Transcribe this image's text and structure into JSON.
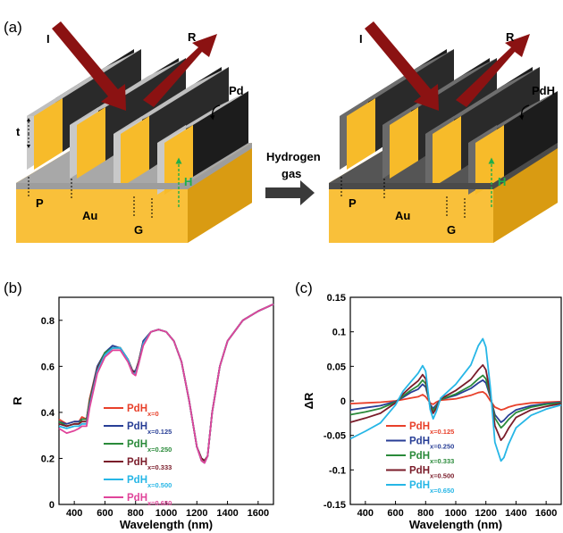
{
  "panel_a": {
    "label": "(a)",
    "left": {
      "incident": "I",
      "reflected": "R",
      "material": "Pd",
      "thickness": "t",
      "height": "H",
      "period": "P",
      "gold": "Au",
      "gap": "G"
    },
    "arrow_text_line1": "Hydrogen",
    "arrow_text_line2": "gas",
    "right": {
      "incident": "I",
      "reflected": "R",
      "material": "PdH",
      "height": "H",
      "period": "P",
      "gold": "Au",
      "gap": "G"
    },
    "colors": {
      "gold": "#f7bb2a",
      "pd": "#b3b3b3",
      "pdh": "#5c5c5c",
      "fin": "#1c1c1c",
      "arrow": "#8b1212",
      "height_line": "#1fae4a"
    }
  },
  "chart_data": [
    {
      "panel": "(b)",
      "type": "line",
      "xlabel": "Wavelength (nm)",
      "ylabel": "R",
      "xlim": [
        300,
        1700
      ],
      "ylim": [
        0,
        0.9
      ],
      "xticks": [
        400,
        600,
        800,
        1000,
        1200,
        1400,
        1600
      ],
      "yticks": [
        0,
        0.2,
        0.4,
        0.6,
        0.8
      ],
      "x": [
        300,
        350,
        400,
        430,
        450,
        480,
        500,
        550,
        600,
        650,
        700,
        750,
        780,
        800,
        820,
        850,
        900,
        950,
        1000,
        1050,
        1100,
        1150,
        1200,
        1230,
        1250,
        1270,
        1300,
        1350,
        1400,
        1500,
        1600,
        1700
      ],
      "series": [
        {
          "name": "PdH",
          "sub": "x=0",
          "color": "#e8402a",
          "values": [
            0.37,
            0.35,
            0.36,
            0.36,
            0.38,
            0.37,
            0.46,
            0.6,
            0.66,
            0.68,
            0.68,
            0.63,
            0.58,
            0.58,
            0.62,
            0.71,
            0.75,
            0.76,
            0.75,
            0.71,
            0.62,
            0.45,
            0.25,
            0.2,
            0.19,
            0.21,
            0.4,
            0.6,
            0.71,
            0.8,
            0.84,
            0.87
          ]
        },
        {
          "name": "PdH",
          "sub": "x=0.125",
          "color": "#283e96",
          "values": [
            0.36,
            0.35,
            0.36,
            0.36,
            0.37,
            0.37,
            0.45,
            0.6,
            0.66,
            0.69,
            0.68,
            0.63,
            0.58,
            0.58,
            0.62,
            0.71,
            0.75,
            0.76,
            0.75,
            0.71,
            0.62,
            0.45,
            0.25,
            0.2,
            0.19,
            0.21,
            0.4,
            0.6,
            0.71,
            0.8,
            0.84,
            0.87
          ]
        },
        {
          "name": "PdH",
          "sub": "x=0.250",
          "color": "#2a8a3a",
          "values": [
            0.36,
            0.34,
            0.35,
            0.35,
            0.37,
            0.37,
            0.45,
            0.59,
            0.66,
            0.68,
            0.68,
            0.63,
            0.58,
            0.57,
            0.62,
            0.7,
            0.75,
            0.76,
            0.75,
            0.71,
            0.62,
            0.45,
            0.25,
            0.2,
            0.19,
            0.21,
            0.4,
            0.6,
            0.71,
            0.8,
            0.84,
            0.87
          ]
        },
        {
          "name": "PdH",
          "sub": "x=0.333",
          "color": "#7a1c2a",
          "values": [
            0.35,
            0.34,
            0.35,
            0.35,
            0.36,
            0.36,
            0.44,
            0.59,
            0.65,
            0.68,
            0.68,
            0.63,
            0.58,
            0.57,
            0.62,
            0.7,
            0.75,
            0.76,
            0.75,
            0.71,
            0.62,
            0.45,
            0.25,
            0.2,
            0.19,
            0.21,
            0.4,
            0.6,
            0.71,
            0.8,
            0.84,
            0.87
          ]
        },
        {
          "name": "PdH",
          "sub": "x=0.500",
          "color": "#26b6e6",
          "values": [
            0.34,
            0.33,
            0.34,
            0.34,
            0.35,
            0.35,
            0.43,
            0.58,
            0.65,
            0.68,
            0.68,
            0.63,
            0.57,
            0.57,
            0.61,
            0.7,
            0.75,
            0.76,
            0.75,
            0.71,
            0.62,
            0.45,
            0.25,
            0.19,
            0.18,
            0.21,
            0.4,
            0.6,
            0.71,
            0.8,
            0.84,
            0.87
          ]
        },
        {
          "name": "PdH",
          "sub": "x=0.650",
          "color": "#e0449a",
          "values": [
            0.33,
            0.31,
            0.32,
            0.33,
            0.34,
            0.34,
            0.42,
            0.57,
            0.64,
            0.67,
            0.67,
            0.62,
            0.57,
            0.56,
            0.61,
            0.69,
            0.75,
            0.76,
            0.75,
            0.71,
            0.62,
            0.45,
            0.25,
            0.19,
            0.18,
            0.21,
            0.4,
            0.6,
            0.71,
            0.8,
            0.84,
            0.87
          ]
        }
      ]
    },
    {
      "panel": "(c)",
      "type": "line",
      "xlabel": "Wavelength (nm)",
      "ylabel": "ΔR",
      "xlim": [
        300,
        1700
      ],
      "ylim": [
        -0.15,
        0.15
      ],
      "xticks": [
        400,
        600,
        800,
        1000,
        1200,
        1400,
        1600
      ],
      "yticks": [
        -0.15,
        -0.1,
        -0.05,
        0,
        0.05,
        0.1,
        0.15
      ],
      "x": [
        300,
        400,
        500,
        600,
        650,
        700,
        750,
        780,
        800,
        830,
        850,
        870,
        900,
        1000,
        1100,
        1150,
        1180,
        1200,
        1230,
        1260,
        1300,
        1320,
        1350,
        1400,
        1500,
        1600,
        1700
      ],
      "series": [
        {
          "name": "PdH",
          "sub": "x=0.125",
          "color": "#e8402a",
          "values": [
            -0.004,
            -0.003,
            -0.002,
            0.0,
            0.002,
            0.004,
            0.006,
            0.009,
            0.006,
            -0.003,
            -0.005,
            -0.002,
            0.001,
            0.003,
            0.008,
            0.012,
            0.013,
            0.01,
            0.0,
            -0.009,
            -0.013,
            -0.012,
            -0.009,
            -0.006,
            -0.003,
            -0.002,
            -0.001
          ]
        },
        {
          "name": "PdH",
          "sub": "x=0.250",
          "color": "#283e96",
          "values": [
            -0.013,
            -0.01,
            -0.007,
            -0.001,
            0.005,
            0.012,
            0.017,
            0.024,
            0.02,
            -0.005,
            -0.011,
            -0.006,
            0.002,
            0.008,
            0.018,
            0.026,
            0.03,
            0.026,
            0.005,
            -0.02,
            -0.031,
            -0.028,
            -0.021,
            -0.013,
            -0.007,
            -0.004,
            -0.002
          ]
        },
        {
          "name": "PdH",
          "sub": "x=0.333",
          "color": "#2a8a3a",
          "values": [
            -0.02,
            -0.016,
            -0.011,
            -0.002,
            0.007,
            0.015,
            0.022,
            0.03,
            0.025,
            -0.007,
            -0.014,
            -0.008,
            0.002,
            0.01,
            0.022,
            0.032,
            0.037,
            0.032,
            0.007,
            -0.025,
            -0.039,
            -0.035,
            -0.027,
            -0.017,
            -0.009,
            -0.005,
            -0.003
          ]
        },
        {
          "name": "PdH",
          "sub": "x=0.500",
          "color": "#7a1c2a",
          "values": [
            -0.031,
            -0.025,
            -0.018,
            -0.003,
            0.01,
            0.02,
            0.029,
            0.038,
            0.032,
            -0.009,
            -0.018,
            -0.011,
            0.003,
            0.015,
            0.031,
            0.045,
            0.052,
            0.045,
            0.01,
            -0.036,
            -0.057,
            -0.052,
            -0.04,
            -0.024,
            -0.013,
            -0.008,
            -0.004
          ]
        },
        {
          "name": "PdH",
          "sub": "x=0.650",
          "color": "#26b6e6",
          "values": [
            -0.055,
            -0.044,
            -0.032,
            -0.006,
            0.014,
            0.027,
            0.04,
            0.051,
            0.043,
            -0.012,
            -0.026,
            -0.016,
            0.004,
            0.024,
            0.052,
            0.08,
            0.09,
            0.078,
            0.018,
            -0.06,
            -0.087,
            -0.082,
            -0.063,
            -0.039,
            -0.021,
            -0.012,
            -0.006
          ]
        }
      ]
    }
  ]
}
